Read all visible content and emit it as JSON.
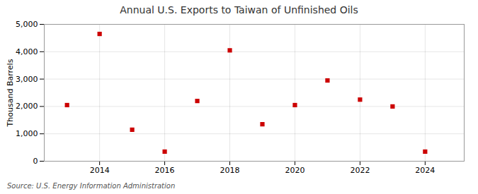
{
  "chart_data": {
    "type": "scatter",
    "title": "Annual U.S. Exports to Taiwan of Unfinished Oils",
    "ylabel": "Thousand Barrels",
    "source": "Source: U.S. Energy Information Administration",
    "x": [
      2013,
      2014,
      2015,
      2016,
      2017,
      2018,
      2019,
      2020,
      2021,
      2022,
      2023,
      2024
    ],
    "values": [
      2050,
      4650,
      1150,
      350,
      2200,
      4050,
      1350,
      2050,
      2950,
      2250,
      2000,
      350
    ],
    "color": "#cc0000",
    "marker": "square",
    "xlim": [
      2012.3,
      2025.2
    ],
    "ylim": [
      0,
      5000
    ],
    "xticks": [
      2014,
      2016,
      2018,
      2020,
      2022,
      2024
    ],
    "yticks": [
      0,
      {
        "value": 1000,
        "label": "1,000"
      },
      {
        "value": 2000,
        "label": "2,000"
      },
      {
        "value": 3000,
        "label": "3,000"
      },
      {
        "value": 4000,
        "label": "4,000"
      },
      {
        "value": 5000,
        "label": "5,000"
      }
    ],
    "grid": true
  }
}
